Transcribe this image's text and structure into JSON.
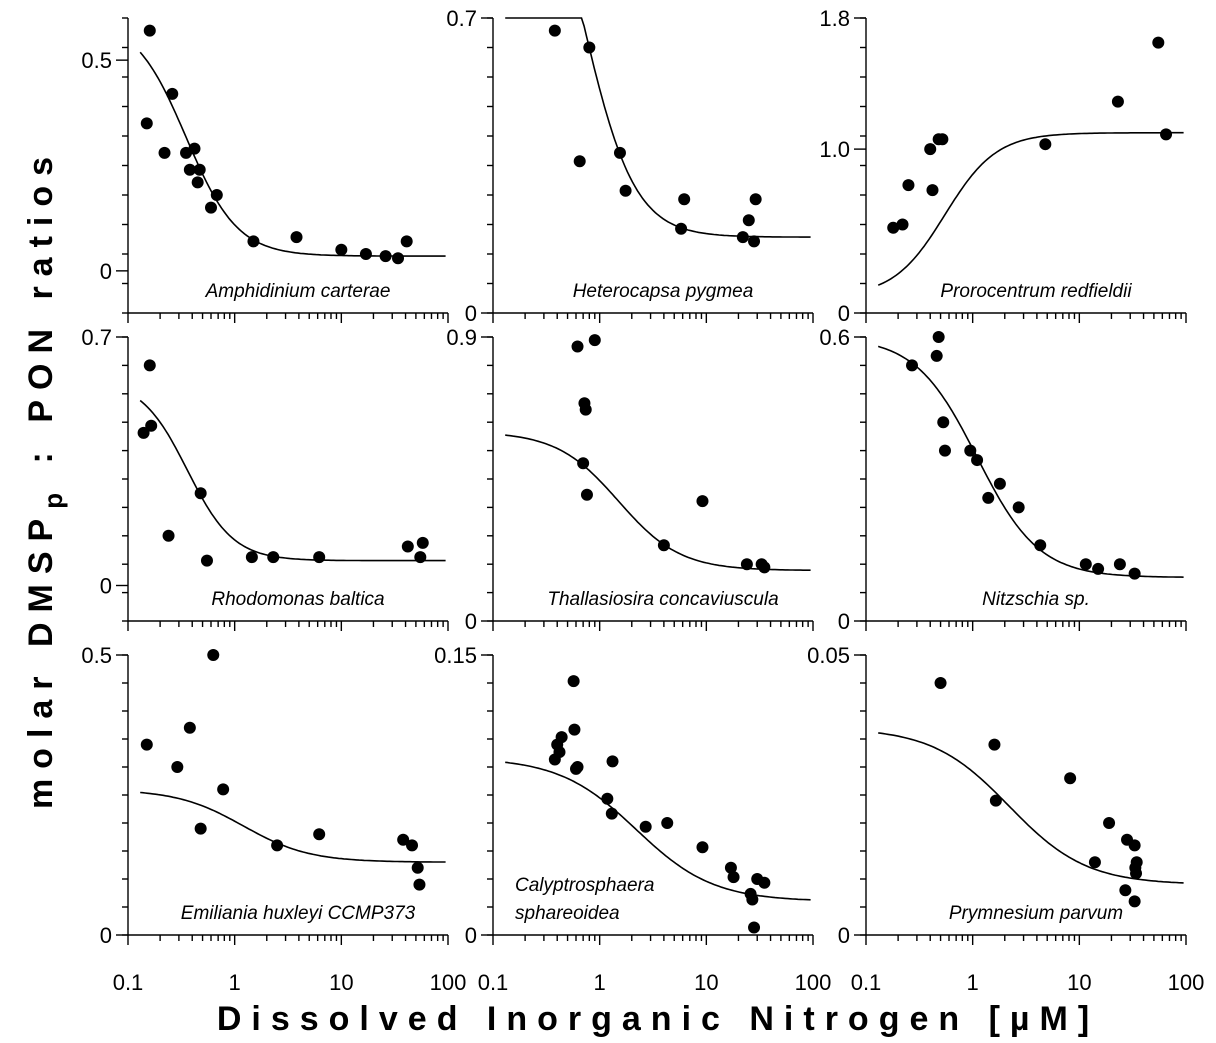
{
  "chart_data": {
    "type": "scatter",
    "xlabel": "Dissolved Inorganic Nitrogen [µM]",
    "ylabel_parts": {
      "main": "molar DMSP",
      "sub": "p",
      "rest": " : PON ratios"
    },
    "x_scale": "log",
    "xlim": [
      0.1,
      100
    ],
    "x_ticks": [
      "0.1",
      "1",
      "10",
      "100"
    ],
    "grid": false,
    "panels": [
      {
        "species": "Amphidinium carterae",
        "ylim": [
          -0.1,
          0.6
        ],
        "yticks": [
          "0",
          "0.5"
        ],
        "fit": {
          "a": 0.035,
          "b": 0.6,
          "k": 0.35,
          "n": 1.8
        },
        "points": [
          [
            0.15,
            0.35
          ],
          [
            0.16,
            0.57
          ],
          [
            0.22,
            0.28
          ],
          [
            0.26,
            0.42
          ],
          [
            0.35,
            0.28
          ],
          [
            0.38,
            0.24
          ],
          [
            0.42,
            0.29
          ],
          [
            0.45,
            0.21
          ],
          [
            0.47,
            0.24
          ],
          [
            0.6,
            0.15
          ],
          [
            0.68,
            0.18
          ],
          [
            1.5,
            0.07
          ],
          [
            3.8,
            0.08
          ],
          [
            10,
            0.05
          ],
          [
            17,
            0.04
          ],
          [
            26,
            0.035
          ],
          [
            34,
            0.03
          ],
          [
            41,
            0.07
          ]
        ]
      },
      {
        "species": "Heterocapsa pygmea",
        "ylim": [
          0,
          0.7
        ],
        "yticks": [
          "0",
          "0.7"
        ],
        "fit": {
          "a": 0.18,
          "b": 1.2,
          "k": 0.7,
          "n": 1.8
        },
        "points": [
          [
            0.38,
            0.67
          ],
          [
            0.65,
            0.36
          ],
          [
            0.8,
            0.63
          ],
          [
            1.55,
            0.38
          ],
          [
            1.75,
            0.29
          ],
          [
            5.8,
            0.2
          ],
          [
            6.2,
            0.27
          ],
          [
            22,
            0.18
          ],
          [
            25,
            0.22
          ],
          [
            28,
            0.17
          ],
          [
            29,
            0.27
          ]
        ]
      },
      {
        "species": "Prorocentrum redfieldii",
        "ylim": [
          0,
          1.8
        ],
        "yticks": [
          "0",
          "1.0",
          "1.8"
        ],
        "fit": {
          "a": 0.1,
          "b": 1.1,
          "k": 0.55,
          "n": -1.8
        },
        "points": [
          [
            0.18,
            0.52
          ],
          [
            0.22,
            0.54
          ],
          [
            0.25,
            0.78
          ],
          [
            0.4,
            1.0
          ],
          [
            0.42,
            0.75
          ],
          [
            0.48,
            1.06
          ],
          [
            0.52,
            1.06
          ],
          [
            4.8,
            1.03
          ],
          [
            23,
            1.29
          ],
          [
            55,
            1.65
          ],
          [
            65,
            1.09
          ]
        ]
      },
      {
        "species": "Rhodomonas baltica",
        "ylim": [
          -0.1,
          0.7
        ],
        "yticks": [
          "0",
          "0.7"
        ],
        "fit": {
          "a": 0.07,
          "b": 0.58,
          "k": 0.36,
          "n": 2.0
        },
        "points": [
          [
            0.14,
            0.43
          ],
          [
            0.16,
            0.62
          ],
          [
            0.165,
            0.45
          ],
          [
            0.24,
            0.14
          ],
          [
            0.48,
            0.26
          ],
          [
            0.55,
            0.07
          ],
          [
            1.45,
            0.08
          ],
          [
            2.3,
            0.08
          ],
          [
            6.2,
            0.08
          ],
          [
            42,
            0.11
          ],
          [
            55,
            0.08
          ],
          [
            58,
            0.12
          ]
        ]
      },
      {
        "species": "Thallasiosira concaviuscula",
        "ylim": [
          0,
          0.9
        ],
        "yticks": [
          "0",
          "0.9"
        ],
        "fit": {
          "a": 0.16,
          "b": 0.6,
          "k": 1.5,
          "n": 1.5
        },
        "points": [
          [
            0.62,
            0.87
          ],
          [
            0.72,
            0.69
          ],
          [
            0.74,
            0.67
          ],
          [
            0.7,
            0.5
          ],
          [
            0.76,
            0.4
          ],
          [
            0.9,
            0.89
          ],
          [
            4,
            0.24
          ],
          [
            9.2,
            0.38
          ],
          [
            24,
            0.18
          ],
          [
            33,
            0.18
          ],
          [
            35,
            0.17
          ]
        ]
      },
      {
        "species": "Nitzschia sp.",
        "ylim": [
          0,
          0.6
        ],
        "yticks": [
          "0",
          "0.6"
        ],
        "fit": {
          "a": 0.092,
          "b": 0.6,
          "k": 1.1,
          "n": 1.5
        },
        "points": [
          [
            0.27,
            0.54
          ],
          [
            0.46,
            0.56
          ],
          [
            0.48,
            0.6
          ],
          [
            0.53,
            0.42
          ],
          [
            0.55,
            0.36
          ],
          [
            0.95,
            0.36
          ],
          [
            1.1,
            0.34
          ],
          [
            1.4,
            0.26
          ],
          [
            1.8,
            0.29
          ],
          [
            2.7,
            0.24
          ],
          [
            4.3,
            0.16
          ],
          [
            11.5,
            0.12
          ],
          [
            15,
            0.11
          ],
          [
            24,
            0.12
          ],
          [
            33,
            0.1
          ]
        ]
      },
      {
        "species": "Emiliania huxleyi CCMP373",
        "ylim": [
          0,
          0.5
        ],
        "yticks": [
          "0",
          "0.5"
        ],
        "fit": {
          "a": 0.13,
          "b": 0.26,
          "k": 1.2,
          "n": 1.4
        },
        "points": [
          [
            0.15,
            0.34
          ],
          [
            0.29,
            0.3
          ],
          [
            0.38,
            0.37
          ],
          [
            0.48,
            0.19
          ],
          [
            0.63,
            0.5
          ],
          [
            0.78,
            0.26
          ],
          [
            2.5,
            0.16
          ],
          [
            6.2,
            0.18
          ],
          [
            38,
            0.17
          ],
          [
            46,
            0.16
          ],
          [
            52,
            0.12
          ],
          [
            54,
            0.09
          ]
        ]
      },
      {
        "species": "Calyptrosphaera sphareoidea",
        "ylim": [
          0,
          0.15
        ],
        "yticks": [
          "0",
          "0.15"
        ],
        "fit": {
          "a": 0.018,
          "b": 0.095,
          "k": 2.2,
          "n": 1.2
        },
        "points": [
          [
            0.38,
            0.094
          ],
          [
            0.4,
            0.102
          ],
          [
            0.42,
            0.098
          ],
          [
            0.44,
            0.106
          ],
          [
            0.57,
            0.136
          ],
          [
            0.58,
            0.11
          ],
          [
            0.6,
            0.089
          ],
          [
            0.62,
            0.09
          ],
          [
            1.18,
            0.073
          ],
          [
            1.3,
            0.065
          ],
          [
            1.32,
            0.093
          ],
          [
            2.7,
            0.058
          ],
          [
            4.3,
            0.06
          ],
          [
            9.2,
            0.047
          ],
          [
            17,
            0.036
          ],
          [
            18,
            0.031
          ],
          [
            26,
            0.022
          ],
          [
            27,
            0.019
          ],
          [
            28,
            0.004
          ],
          [
            30,
            0.03
          ],
          [
            35,
            0.028
          ]
        ]
      },
      {
        "species": "Prymnesium parvum",
        "ylim": [
          0,
          0.05
        ],
        "yticks": [
          "0",
          "0.05"
        ],
        "fit": {
          "a": 0.009,
          "b": 0.037,
          "k": 2.2,
          "n": 1.2
        },
        "points": [
          [
            0.5,
            0.045
          ],
          [
            1.6,
            0.034
          ],
          [
            1.65,
            0.024
          ],
          [
            8.2,
            0.028
          ],
          [
            14,
            0.013
          ],
          [
            19,
            0.02
          ],
          [
            28,
            0.017
          ],
          [
            33,
            0.016
          ],
          [
            33.5,
            0.012
          ],
          [
            34,
            0.011
          ],
          [
            34.5,
            0.013
          ],
          [
            27,
            0.008
          ],
          [
            33,
            0.006
          ]
        ]
      }
    ]
  }
}
